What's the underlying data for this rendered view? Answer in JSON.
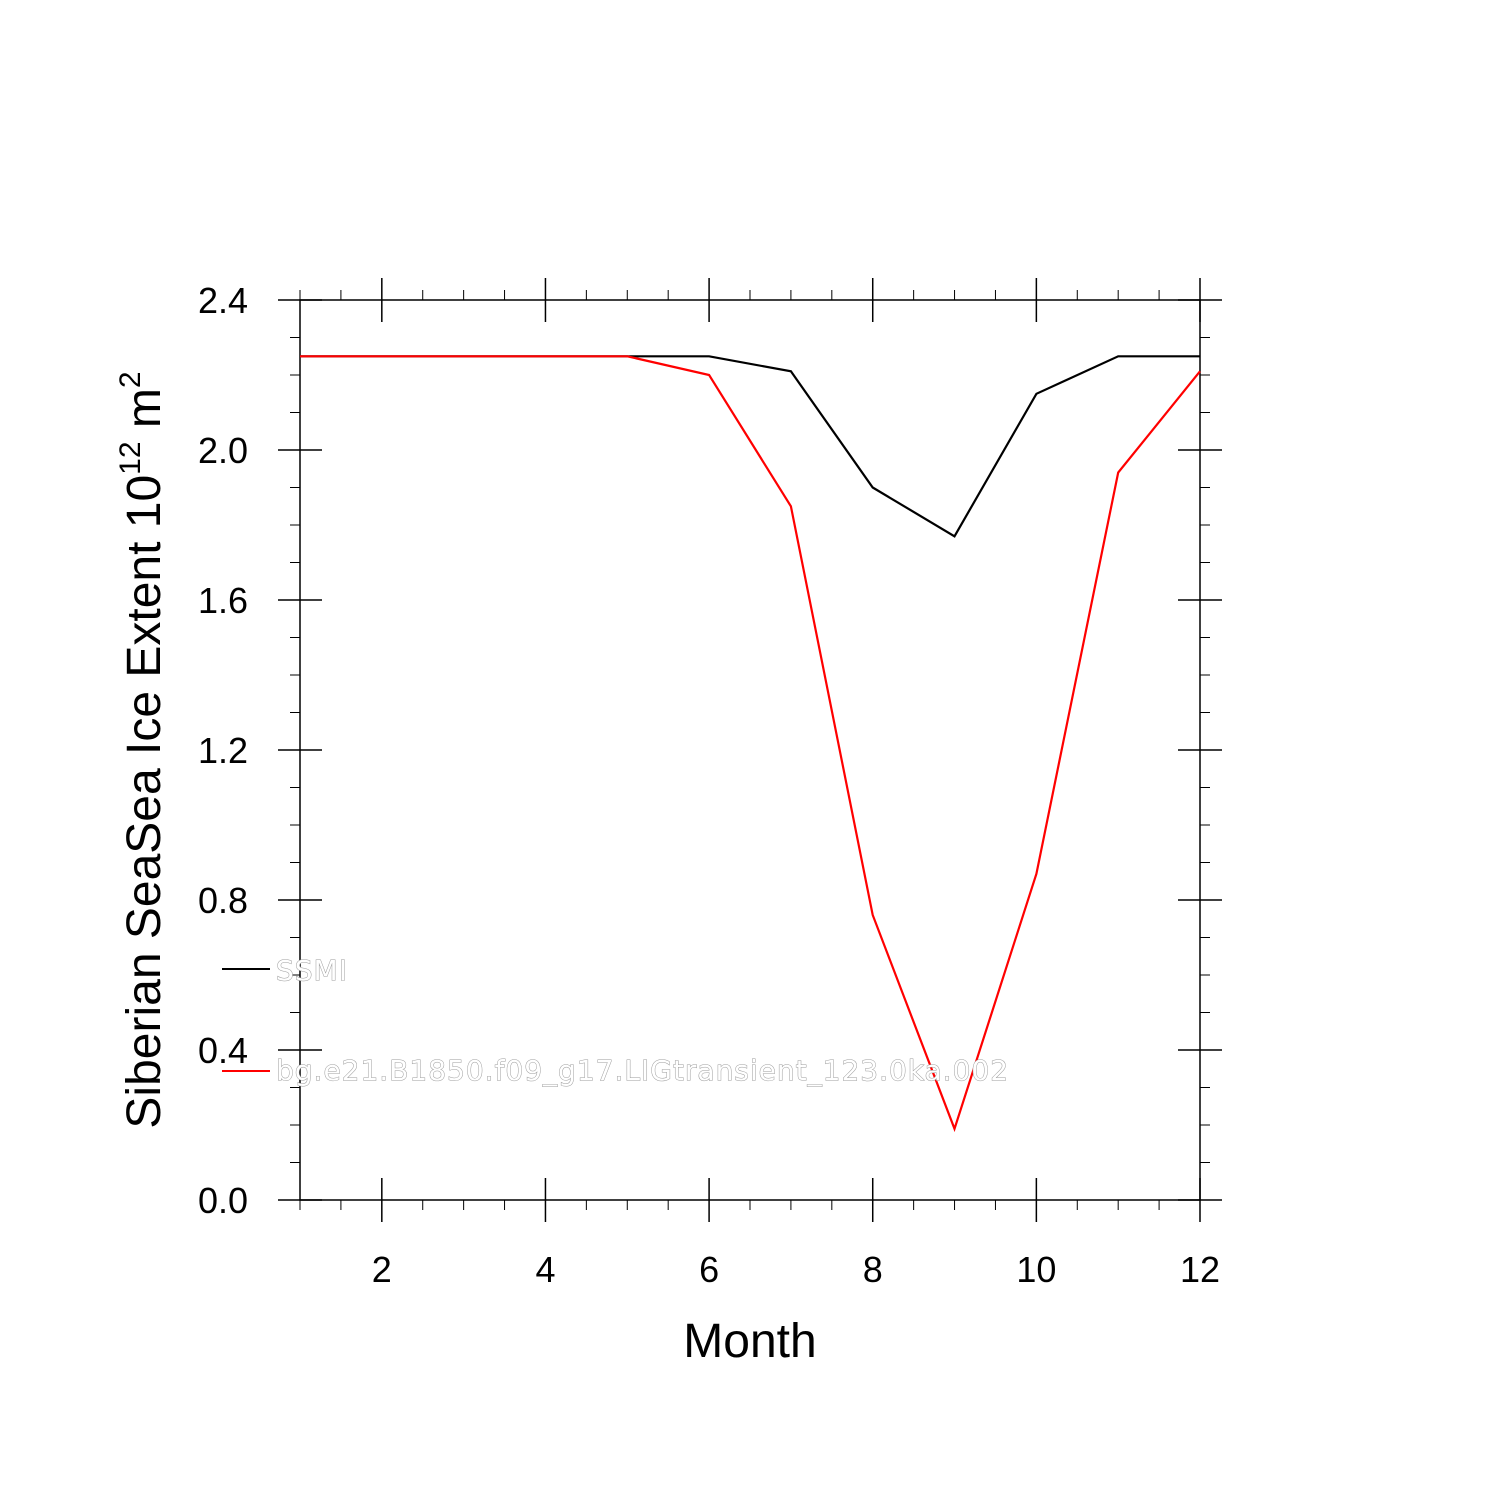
{
  "chart_data": {
    "type": "line",
    "xlabel": "Month",
    "ylabel_text": "Siberian SeaSea Ice Extent 10",
    "ylabel_sup": "12",
    "ylabel_unit": " m",
    "ylabel_unit_sup": "2",
    "xlim": [
      1,
      12
    ],
    "ylim": [
      0.0,
      2.4
    ],
    "x_ticks": [
      2,
      4,
      6,
      8,
      10,
      12
    ],
    "x_tick_labels": [
      "2",
      "4",
      "6",
      "8",
      "10",
      "12"
    ],
    "y_ticks": [
      0.0,
      0.4,
      0.8,
      1.2,
      1.6,
      2.0,
      2.4
    ],
    "y_tick_labels": [
      "0.0",
      "0.4",
      "0.8",
      "1.2",
      "1.6",
      "2.0",
      "2.4"
    ],
    "grid": false,
    "legend_position": "inside lower-left",
    "x": [
      1,
      2,
      3,
      4,
      5,
      6,
      7,
      8,
      9,
      10,
      11,
      12
    ],
    "series": [
      {
        "name": "SSMI",
        "color": "#000000",
        "values": [
          2.25,
          2.25,
          2.25,
          2.25,
          2.25,
          2.25,
          2.21,
          1.9,
          1.77,
          2.15,
          2.25,
          2.25
        ]
      },
      {
        "name": "bg.e21.B1850.f09_g17.LIGtransient_123.0ka.002",
        "color": "#ff0000",
        "values": [
          2.25,
          2.25,
          2.25,
          2.25,
          2.25,
          2.2,
          1.85,
          0.76,
          0.19,
          0.87,
          1.94,
          2.21
        ]
      }
    ]
  }
}
